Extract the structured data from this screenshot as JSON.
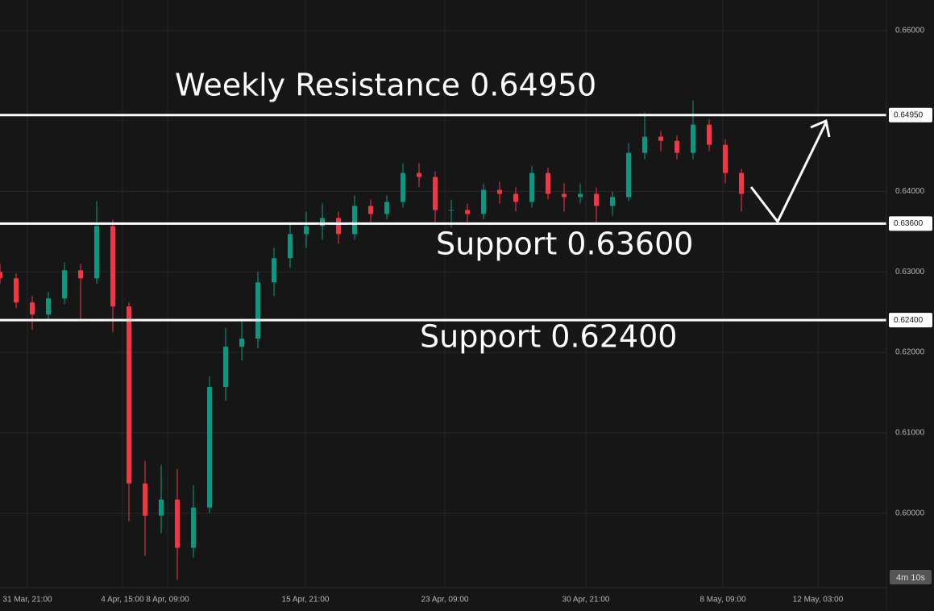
{
  "chart_data": {
    "type": "candlestick",
    "x": [
      0,
      1,
      2,
      3,
      4,
      5,
      6,
      7,
      8,
      9,
      10,
      11,
      12,
      13,
      14,
      15,
      16,
      17,
      18,
      19,
      20,
      21,
      22,
      23,
      24,
      25,
      26,
      27,
      28,
      29,
      30,
      31,
      32,
      33,
      34,
      35,
      36,
      37,
      38,
      39,
      40,
      41,
      42,
      43,
      44,
      45,
      46
    ],
    "open": [
      0.63,
      0.6292,
      0.6262,
      0.6247,
      0.6267,
      0.6302,
      0.6292,
      0.6357,
      0.6257,
      0.6037,
      0.5997,
      0.6017,
      0.5957,
      0.6007,
      0.6157,
      0.6207,
      0.6217,
      0.6287,
      0.6317,
      0.6347,
      0.6357,
      0.6367,
      0.6347,
      0.6382,
      0.6372,
      0.6387,
      0.6423,
      0.6418,
      0.6377,
      0.6377,
      0.6372,
      0.6402,
      0.6397,
      0.6387,
      0.6423,
      0.6397,
      0.6393,
      0.6397,
      0.6382,
      0.6393,
      0.6448,
      0.6468,
      0.6463,
      0.6448,
      0.6483,
      0.6458,
      0.6423
    ],
    "high": [
      0.631,
      0.6298,
      0.627,
      0.6275,
      0.6312,
      0.631,
      0.6388,
      0.6365,
      0.6262,
      0.6065,
      0.606,
      0.6055,
      0.6035,
      0.617,
      0.623,
      0.624,
      0.63,
      0.633,
      0.636,
      0.6375,
      0.6385,
      0.6375,
      0.6395,
      0.639,
      0.6395,
      0.6435,
      0.6435,
      0.6425,
      0.639,
      0.6385,
      0.641,
      0.6412,
      0.6405,
      0.6432,
      0.643,
      0.641,
      0.641,
      0.6405,
      0.64,
      0.646,
      0.6498,
      0.6475,
      0.647,
      0.6513,
      0.649,
      0.6465,
      0.6428
    ],
    "low": [
      0.6285,
      0.6255,
      0.6228,
      0.624,
      0.626,
      0.624,
      0.6285,
      0.6225,
      0.599,
      0.5947,
      0.5975,
      0.5917,
      0.5945,
      0.6,
      0.614,
      0.619,
      0.6205,
      0.627,
      0.6305,
      0.633,
      0.634,
      0.6335,
      0.634,
      0.6362,
      0.6365,
      0.638,
      0.6405,
      0.636,
      0.6355,
      0.6358,
      0.6365,
      0.6385,
      0.6375,
      0.638,
      0.639,
      0.6375,
      0.6385,
      0.636,
      0.637,
      0.6388,
      0.644,
      0.645,
      0.644,
      0.644,
      0.645,
      0.641,
      0.6375
    ],
    "close": [
      0.6292,
      0.6262,
      0.6247,
      0.6267,
      0.6302,
      0.6292,
      0.6357,
      0.6257,
      0.6037,
      0.5997,
      0.6017,
      0.5957,
      0.6007,
      0.6157,
      0.6207,
      0.6217,
      0.6287,
      0.6317,
      0.6347,
      0.6357,
      0.6367,
      0.6347,
      0.6382,
      0.6372,
      0.6387,
      0.6423,
      0.6418,
      0.6377,
      0.6377,
      0.6372,
      0.6402,
      0.6397,
      0.6387,
      0.6423,
      0.6397,
      0.6393,
      0.6397,
      0.6382,
      0.6393,
      0.6448,
      0.6468,
      0.6463,
      0.6448,
      0.6483,
      0.6458,
      0.6423,
      0.6397
    ],
    "up_color": "#089981",
    "down_color": "#f23645",
    "xlim": [
      0,
      55
    ],
    "xticks": [
      {
        "value": 1.7,
        "label": "31 Mar, 21:00"
      },
      {
        "value": 7.6,
        "label": "4 Apr, 15:00"
      },
      {
        "value": 10.4,
        "label": "8 Apr, 09:00"
      },
      {
        "value": 18.95,
        "label": "15 Apr, 21:00"
      },
      {
        "value": 27.6,
        "label": "23 Apr, 09:00"
      },
      {
        "value": 36.35,
        "label": "30 Apr, 21:00"
      },
      {
        "value": 44.85,
        "label": "8 May, 09:00"
      },
      {
        "value": 50.75,
        "label": "12 May, 03:00"
      }
    ],
    "ylim": [
      0.59085,
      0.6638
    ],
    "yticks": [
      {
        "value": 0.6,
        "label": "0.60000"
      },
      {
        "value": 0.61,
        "label": "0.61000"
      },
      {
        "value": 0.62,
        "label": "0.62000"
      },
      {
        "value": 0.63,
        "label": "0.63000"
      },
      {
        "value": 0.64,
        "label": "0.64000"
      },
      {
        "value": 0.66,
        "label": "0.66000"
      }
    ],
    "grid": true,
    "levels": [
      {
        "value": 0.6495,
        "label": "0.64950",
        "text": "Weekly Resistance 0.64950"
      },
      {
        "value": 0.636,
        "label": "0.63600",
        "text": "Support 0.63600"
      },
      {
        "value": 0.624,
        "label": "0.62400",
        "text": "Support 0.62400"
      }
    ],
    "countdown": "4m 10s"
  }
}
